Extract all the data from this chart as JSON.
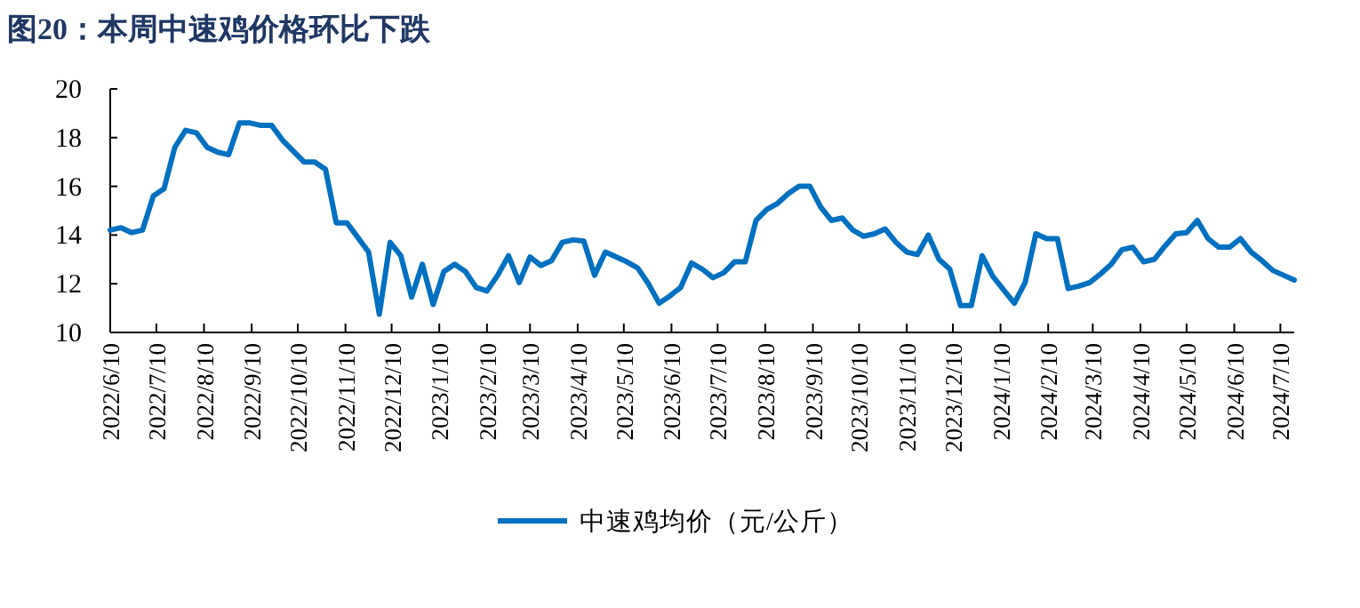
{
  "chart_data": {
    "type": "line",
    "title": "图20：本周中速鸡价格环比下跌",
    "x": [
      "2022-06-10",
      "2022-06-17",
      "2022-06-24",
      "2022-07-01",
      "2022-07-08",
      "2022-07-15",
      "2022-07-22",
      "2022-07-29",
      "2022-08-05",
      "2022-08-12",
      "2022-08-19",
      "2022-08-26",
      "2022-09-02",
      "2022-09-09",
      "2022-09-16",
      "2022-09-23",
      "2022-09-30",
      "2022-10-07",
      "2022-10-14",
      "2022-10-21",
      "2022-10-28",
      "2022-11-04",
      "2022-11-11",
      "2022-11-18",
      "2022-11-25",
      "2022-12-02",
      "2022-12-09",
      "2022-12-16",
      "2022-12-23",
      "2022-12-30",
      "2023-01-06",
      "2023-01-13",
      "2023-01-20",
      "2023-01-27",
      "2023-02-03",
      "2023-02-10",
      "2023-02-17",
      "2023-02-24",
      "2023-03-03",
      "2023-03-10",
      "2023-03-17",
      "2023-03-24",
      "2023-03-31",
      "2023-04-07",
      "2023-04-14",
      "2023-04-21",
      "2023-04-28",
      "2023-05-05",
      "2023-05-12",
      "2023-05-19",
      "2023-05-26",
      "2023-06-02",
      "2023-06-09",
      "2023-06-16",
      "2023-06-23",
      "2023-06-30",
      "2023-07-07",
      "2023-07-14",
      "2023-07-21",
      "2023-07-28",
      "2023-08-04",
      "2023-08-11",
      "2023-08-18",
      "2023-08-25",
      "2023-09-01",
      "2023-09-08",
      "2023-09-15",
      "2023-09-22",
      "2023-09-29",
      "2023-10-06",
      "2023-10-13",
      "2023-10-20",
      "2023-10-27",
      "2023-11-03",
      "2023-11-10",
      "2023-11-17",
      "2023-11-24",
      "2023-12-01",
      "2023-12-08",
      "2023-12-15",
      "2023-12-22",
      "2023-12-29",
      "2024-01-05",
      "2024-01-12",
      "2024-01-19",
      "2024-01-26",
      "2024-02-02",
      "2024-02-09",
      "2024-02-16",
      "2024-02-23",
      "2024-03-01",
      "2024-03-08",
      "2024-03-15",
      "2024-03-22",
      "2024-03-29",
      "2024-04-05",
      "2024-04-12",
      "2024-04-19",
      "2024-04-26",
      "2024-05-03",
      "2024-05-10",
      "2024-05-17",
      "2024-05-24",
      "2024-05-31",
      "2024-06-07",
      "2024-06-14",
      "2024-06-21",
      "2024-06-28",
      "2024-07-05",
      "2024-07-12",
      "2024-07-19"
    ],
    "series": [
      {
        "name": "中速鸡均价（元/公斤）",
        "color": "#0070c0",
        "values": [
          14.2,
          14.3,
          14.1,
          14.2,
          15.6,
          15.9,
          17.6,
          18.3,
          18.2,
          17.6,
          17.4,
          17.3,
          18.6,
          18.6,
          18.5,
          18.5,
          17.9,
          17.45,
          17.0,
          17.0,
          16.7,
          14.5,
          14.5,
          13.9,
          13.3,
          10.75,
          13.7,
          13.15,
          11.45,
          12.8,
          11.15,
          12.5,
          12.8,
          12.5,
          11.85,
          11.7,
          12.35,
          13.15,
          12.05,
          13.1,
          12.75,
          12.95,
          13.7,
          13.8,
          13.75,
          12.35,
          13.3,
          13.1,
          12.9,
          12.65,
          12.0,
          11.2,
          11.5,
          11.85,
          12.85,
          12.6,
          12.25,
          12.45,
          12.9,
          12.9,
          14.6,
          15.05,
          15.3,
          15.7,
          16.0,
          16.0,
          15.15,
          14.6,
          14.7,
          14.2,
          13.95,
          14.05,
          14.25,
          13.7,
          13.3,
          13.2,
          14.0,
          13.0,
          12.6,
          11.1,
          11.1,
          13.15,
          12.3,
          11.75,
          11.2,
          12.05,
          14.05,
          13.85,
          13.85,
          11.8,
          11.9,
          12.05,
          12.4,
          12.8,
          13.4,
          13.5,
          12.9,
          13.0,
          13.55,
          14.05,
          14.1,
          14.6,
          13.85,
          13.5,
          13.5,
          13.85,
          13.3,
          12.95,
          12.55,
          12.35,
          12.15
        ]
      }
    ],
    "xlim": [
      "2022-06-10",
      "2024-07-19"
    ],
    "ylim": [
      10,
      20
    ],
    "yticks": [
      10,
      12,
      14,
      16,
      18,
      20
    ],
    "xticks": [
      {
        "value": "2022-06-10",
        "label": "2022/6/10"
      },
      {
        "value": "2022-07-10",
        "label": "2022/7/10"
      },
      {
        "value": "2022-08-10",
        "label": "2022/8/10"
      },
      {
        "value": "2022-09-10",
        "label": "2022/9/10"
      },
      {
        "value": "2022-10-10",
        "label": "2022/10/10"
      },
      {
        "value": "2022-11-10",
        "label": "2022/11/10"
      },
      {
        "value": "2022-12-10",
        "label": "2022/12/10"
      },
      {
        "value": "2023-01-10",
        "label": "2023/1/10"
      },
      {
        "value": "2023-02-10",
        "label": "2023/2/10"
      },
      {
        "value": "2023-03-10",
        "label": "2023/3/10"
      },
      {
        "value": "2023-04-10",
        "label": "2023/4/10"
      },
      {
        "value": "2023-05-10",
        "label": "2023/5/10"
      },
      {
        "value": "2023-06-10",
        "label": "2023/6/10"
      },
      {
        "value": "2023-07-10",
        "label": "2023/7/10"
      },
      {
        "value": "2023-08-10",
        "label": "2023/8/10"
      },
      {
        "value": "2023-09-10",
        "label": "2023/9/10"
      },
      {
        "value": "2023-10-10",
        "label": "2023/10/10"
      },
      {
        "value": "2023-11-10",
        "label": "2023/11/10"
      },
      {
        "value": "2023-12-10",
        "label": "2023/12/10"
      },
      {
        "value": "2024-01-10",
        "label": "2024/1/10"
      },
      {
        "value": "2024-02-10",
        "label": "2024/2/10"
      },
      {
        "value": "2024-03-10",
        "label": "2024/3/10"
      },
      {
        "value": "2024-04-10",
        "label": "2024/4/10"
      },
      {
        "value": "2024-05-10",
        "label": "2024/5/10"
      },
      {
        "value": "2024-06-10",
        "label": "2024/6/10"
      },
      {
        "value": "2024-07-10",
        "label": "2024/7/10"
      }
    ],
    "legend": "bottom"
  }
}
